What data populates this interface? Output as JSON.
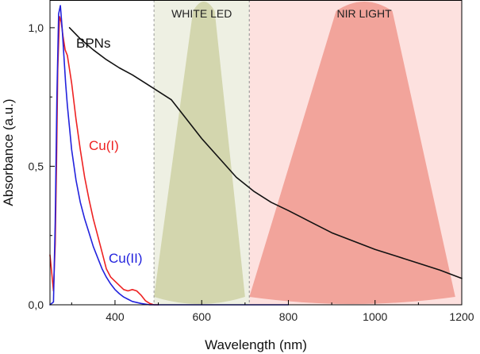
{
  "chart_data": {
    "type": "line",
    "title": "",
    "xlabel": "Wavelength (nm)",
    "ylabel": "Absorbance (a.u.)",
    "xlim": [
      250,
      1200
    ],
    "ylim": [
      0,
      1.1
    ],
    "x_ticks": [
      {
        "value": 400,
        "label": "400"
      },
      {
        "value": 600,
        "label": "600"
      },
      {
        "value": 800,
        "label": "800"
      },
      {
        "value": 1000,
        "label": "1000"
      },
      {
        "value": 1200,
        "label": "1200"
      }
    ],
    "y_ticks": [
      {
        "value": 0.0,
        "label": "0,0"
      },
      {
        "value": 0.5,
        "label": "0,5"
      },
      {
        "value": 1.0,
        "label": "1,0"
      }
    ],
    "bands": [
      {
        "name": "WHITE LED",
        "label": "WHITE LED",
        "range": [
          490,
          710
        ],
        "shade_color": "#eef0e3",
        "cone_color": "#d3d6ae",
        "cone_top_x": [
          580,
          630
        ],
        "cone_base_x": [
          490,
          700
        ]
      },
      {
        "name": "NIR LIGHT",
        "label": "NIR LIGHT",
        "range": [
          710,
          1200
        ],
        "shade_color": "#fde1df",
        "cone_color": "#f2a49b",
        "cone_top_x": [
          910,
          1040
        ],
        "cone_base_x": [
          710,
          1185
        ]
      }
    ],
    "series": [
      {
        "name": "BPNs",
        "label": "BPNs",
        "color": "#111111",
        "x": [
          295,
          320,
          350,
          380,
          410,
          440,
          470,
          500,
          530,
          560,
          600,
          640,
          680,
          720,
          760,
          800,
          850,
          900,
          950,
          1000,
          1050,
          1100,
          1150,
          1200
        ],
        "y": [
          1.0,
          0.96,
          0.92,
          0.885,
          0.855,
          0.83,
          0.8,
          0.77,
          0.74,
          0.68,
          0.6,
          0.53,
          0.46,
          0.41,
          0.37,
          0.34,
          0.3,
          0.26,
          0.23,
          0.2,
          0.175,
          0.15,
          0.125,
          0.095
        ]
      },
      {
        "name": "Cu(I)",
        "label": "Cu(I)",
        "color": "#ee2222",
        "x": [
          250,
          255,
          258,
          262,
          265,
          268,
          272,
          276,
          280,
          285,
          290,
          295,
          300,
          310,
          320,
          330,
          340,
          350,
          360,
          370,
          380,
          390,
          400,
          410,
          420,
          430,
          440,
          450,
          460,
          470,
          480,
          490,
          500
        ],
        "y": [
          0.18,
          0.1,
          0.05,
          0.22,
          0.5,
          0.85,
          1.04,
          1.02,
          0.97,
          0.92,
          0.9,
          0.85,
          0.8,
          0.67,
          0.56,
          0.46,
          0.38,
          0.31,
          0.25,
          0.19,
          0.13,
          0.1,
          0.085,
          0.07,
          0.055,
          0.05,
          0.055,
          0.05,
          0.035,
          0.015,
          0.005,
          0.0,
          0.0
        ]
      },
      {
        "name": "Cu(II)",
        "label": "Cu(II)",
        "color": "#2222dd",
        "x": [
          250,
          258,
          262,
          266,
          270,
          274,
          278,
          282,
          286,
          290,
          295,
          300,
          310,
          320,
          330,
          340,
          350,
          360,
          370,
          380,
          390,
          400,
          410,
          420,
          430,
          440,
          460,
          480,
          500,
          600,
          700,
          800
        ],
        "y": [
          0.0,
          0.01,
          0.3,
          0.75,
          1.05,
          1.08,
          1.0,
          0.9,
          0.8,
          0.72,
          0.64,
          0.56,
          0.45,
          0.37,
          0.31,
          0.26,
          0.21,
          0.17,
          0.13,
          0.1,
          0.075,
          0.055,
          0.04,
          0.028,
          0.02,
          0.012,
          0.005,
          0.0,
          0.0,
          0.0,
          0.0,
          0.0
        ]
      }
    ]
  }
}
